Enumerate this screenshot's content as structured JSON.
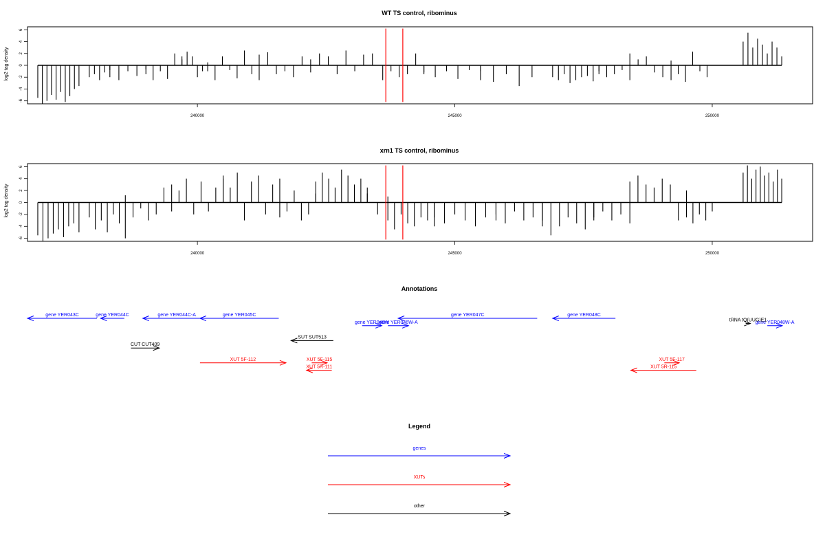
{
  "chart_data": [
    {
      "type": "bar",
      "title": "WT TS control, ribominus",
      "ylabel": "log2 tag density",
      "xlim": [
        236700,
        251950
      ],
      "ylim": [
        -6.5,
        6.5
      ],
      "x_ticks": [
        240000,
        245000,
        250000
      ],
      "y_ticks": [
        -6,
        -4,
        -2,
        0,
        2,
        4,
        6
      ],
      "markers": [
        {
          "x": 243660,
          "color": "#ff0000"
        },
        {
          "x": 243990,
          "color": "#ff0000"
        }
      ],
      "series": [
        {
          "bins": [
            {
              "from": 236900,
              "to": 237700,
              "values": [
                -5.5,
                -6.5,
                -6,
                -5,
                -5.8,
                -4.5,
                -6.2,
                -5.2,
                -4,
                -3.5
              ]
            },
            {
              "from": 237900,
              "to": 238300,
              "values": [
                -2,
                -1.5,
                -2.5,
                -1.2,
                -2
              ]
            },
            {
              "from": 238300,
              "to": 239000,
              "values": [
                -0.8,
                -2.5,
                -1,
                -1.8,
                -0.7
              ]
            },
            {
              "from": 239000,
              "to": 239700,
              "values": [
                -1.5,
                -2.5,
                -1,
                -2.3,
                2,
                1.5
              ]
            },
            {
              "from": 239700,
              "to": 240200,
              "values": [
                1,
                2.3,
                1.5,
                -2,
                -1,
                0.5
              ]
            },
            {
              "from": 240200,
              "to": 241200,
              "values": [
                -1,
                -2.5,
                1.5,
                -0.8,
                -2.2,
                2.5,
                -1.5,
                1.8
              ]
            },
            {
              "from": 241200,
              "to": 242200,
              "values": [
                -2.5,
                2.2,
                -1.5,
                -1,
                -2,
                1.5,
                -1.2
              ]
            },
            {
              "from": 242200,
              "to": 243400,
              "values": [
                1,
                2,
                1.5,
                -1.5,
                2.5,
                -1,
                1.8,
                2
              ]
            },
            {
              "from": 243600,
              "to": 244400,
              "values": [
                -2.5,
                -1,
                -2,
                -1.5,
                2,
                -1.2
              ]
            },
            {
              "from": 244400,
              "to": 245500,
              "values": [
                -1.5,
                -2,
                -1,
                -2.3,
                -0.8,
                -2.5
              ]
            },
            {
              "from": 245500,
              "to": 246500,
              "values": [
                -1,
                -2.8,
                -1.5,
                -3.5,
                -2
              ]
            },
            {
              "from": 246900,
              "to": 247800,
              "values": [
                -2,
                -2.5,
                -1.5,
                -3,
                -2.5,
                -2,
                -1.8,
                -2.7,
                -1.5
              ]
            },
            {
              "from": 247800,
              "to": 248400,
              "values": [
                -1,
                -2,
                -1.5,
                -0.8,
                -2.5
              ]
            },
            {
              "from": 248400,
              "to": 249200,
              "values": [
                2,
                1,
                1.5,
                -1.2,
                -2,
                0.8
              ]
            },
            {
              "from": 249200,
              "to": 249900,
              "values": [
                -2.5,
                -1.5,
                -2.8,
                2.3,
                -1,
                -2
              ]
            },
            {
              "from": 250600,
              "to": 251350,
              "values": [
                4,
                5.5,
                3,
                4.5,
                3.5,
                2,
                4,
                3,
                1.5
              ]
            }
          ]
        },
        {
          "bins": []
        }
      ]
    },
    {
      "type": "bar",
      "title": "xrn1 TS control, ribominus",
      "ylabel": "log2 tag density",
      "xlim": [
        236700,
        251950
      ],
      "ylim": [
        -6.5,
        6.5
      ],
      "x_ticks": [
        240000,
        245000,
        250000
      ],
      "y_ticks": [
        -6,
        -4,
        -2,
        0,
        2,
        4,
        6
      ],
      "markers": [
        {
          "x": 243660,
          "color": "#ff0000"
        },
        {
          "x": 243990,
          "color": "#ff0000"
        }
      ],
      "series": [
        {
          "bins": [
            {
              "from": 236900,
              "to": 237700,
              "values": [
                -5.5,
                -6.5,
                -6,
                -5.2,
                -4.5,
                -5.8,
                -4,
                -3.5,
                -5
              ]
            },
            {
              "from": 237900,
              "to": 238600,
              "values": [
                -2.5,
                -4.5,
                -3,
                -5,
                -2,
                -3.5,
                1.2
              ]
            },
            {
              "from": 238600,
              "to": 239500,
              "values": [
                -6,
                -2.5,
                -1,
                -3,
                -2,
                2.5,
                -1.5
              ]
            },
            {
              "from": 239500,
              "to": 240500,
              "values": [
                3,
                2,
                4,
                -2,
                3.5,
                -1.5,
                2.5,
                4.5
              ]
            },
            {
              "from": 240500,
              "to": 241600,
              "values": [
                4,
                2.5,
                5,
                -3,
                3.5,
                4.5,
                -2,
                3,
                4
              ]
            },
            {
              "from": 241600,
              "to": 242300,
              "values": [
                -2.5,
                -1.5,
                2,
                -3,
                -2,
                1.5
              ]
            },
            {
              "from": 242300,
              "to": 243300,
              "values": [
                3.5,
                5,
                4,
                2.5,
                5.5,
                4.5,
                3,
                4,
                2.5
              ]
            },
            {
              "from": 243300,
              "to": 243700,
              "values": [
                1.5,
                -2,
                1
              ]
            },
            {
              "from": 243700,
              "to": 244600,
              "values": [
                -3,
                -4.5,
                -2,
                -3.5,
                -4,
                -2.5,
                -3,
                -4
              ]
            },
            {
              "from": 244600,
              "to": 245800,
              "values": [
                -2.5,
                -3.5,
                -2,
                -3,
                -4,
                -2.5,
                -3
              ]
            },
            {
              "from": 245800,
              "to": 246700,
              "values": [
                -2,
                -3.5,
                -1.5,
                -3,
                -2.5,
                -4
              ]
            },
            {
              "from": 246700,
              "to": 247700,
              "values": [
                -3,
                -5.5,
                -4,
                -2.5,
                -3.5,
                -4.5,
                -3
              ]
            },
            {
              "from": 247700,
              "to": 248400,
              "values": [
                -2.5,
                -1.5,
                -3,
                -2,
                -3.5
              ]
            },
            {
              "from": 248400,
              "to": 249500,
              "values": [
                3.5,
                4.5,
                3,
                2.5,
                4,
                3,
                -3,
                2
              ]
            },
            {
              "from": 249500,
              "to": 250000,
              "values": [
                -2.5,
                -3.5,
                -2,
                -3,
                -1.5
              ]
            },
            {
              "from": 250600,
              "to": 251350,
              "values": [
                5,
                6.2,
                4,
                5.5,
                6,
                4.5,
                5,
                3.5,
                5.5,
                4
              ]
            }
          ]
        }
      ]
    }
  ],
  "annotations": {
    "title": "Annotations",
    "features": [
      {
        "label": "gene YER043C",
        "type": "gene",
        "start": 236700,
        "end": 238050,
        "strand": "-",
        "row": 0
      },
      {
        "label": "gene YER044C",
        "type": "gene",
        "start": 238120,
        "end": 238580,
        "strand": "-",
        "row": 0
      },
      {
        "label": "gene YER044C-A",
        "type": "gene",
        "start": 238940,
        "end": 240260,
        "strand": "-",
        "row": 0
      },
      {
        "label": "gene YER045C",
        "type": "gene",
        "start": 240050,
        "end": 241580,
        "strand": "-",
        "row": 0
      },
      {
        "label": "gene YER046W",
        "type": "gene",
        "start": 243200,
        "end": 243580,
        "strand": "+",
        "row": 1
      },
      {
        "label": "gene YER046W-A",
        "type": "gene",
        "start": 243700,
        "end": 244100,
        "strand": "+",
        "row": 1
      },
      {
        "label": "gene YER047C",
        "type": "gene",
        "start": 243900,
        "end": 246600,
        "strand": "-",
        "row": 0
      },
      {
        "label": "gene YER048C",
        "type": "gene",
        "start": 246900,
        "end": 248120,
        "strand": "-",
        "row": 0
      },
      {
        "label": "gene YER048W-A",
        "type": "gene",
        "start": 251070,
        "end": 251360,
        "strand": "+",
        "row": 1
      },
      {
        "label": "tRNA tQ(UUG)E1",
        "type": "other",
        "start": 250650,
        "end": 250740,
        "strand": "+",
        "row": 0.7
      },
      {
        "label": "SUT SUT513",
        "type": "other",
        "start": 241820,
        "end": 242640,
        "strand": "-",
        "row": 3
      },
      {
        "label": "CUT CUT409",
        "type": "other",
        "start": 238710,
        "end": 239260,
        "strand": "+",
        "row": 4
      },
      {
        "label": "XUT 5F-112",
        "type": "xut",
        "start": 240050,
        "end": 241720,
        "strand": "+",
        "row": 6
      },
      {
        "label": "XUT 5F-115",
        "type": "xut",
        "start": 242220,
        "end": 242520,
        "strand": "+",
        "row": 6
      },
      {
        "label": "XUT 5R-111",
        "type": "xut",
        "start": 242120,
        "end": 242610,
        "strand": "-",
        "row": 7
      },
      {
        "label": "XUT 5F-117",
        "type": "xut",
        "start": 249070,
        "end": 249360,
        "strand": "+",
        "row": 6
      },
      {
        "label": "XUT 5R-115",
        "type": "xut",
        "start": 248420,
        "end": 249690,
        "strand": "-",
        "row": 7
      }
    ]
  },
  "legend": {
    "title": "Legend",
    "items": [
      {
        "label": "genes",
        "color": "#0000ff"
      },
      {
        "label": "XUTs",
        "color": "#ff0000"
      },
      {
        "label": "other",
        "color": "#000000"
      }
    ]
  },
  "colors": {
    "gene": "#0000ff",
    "xut": "#ff0000",
    "other": "#000000"
  }
}
